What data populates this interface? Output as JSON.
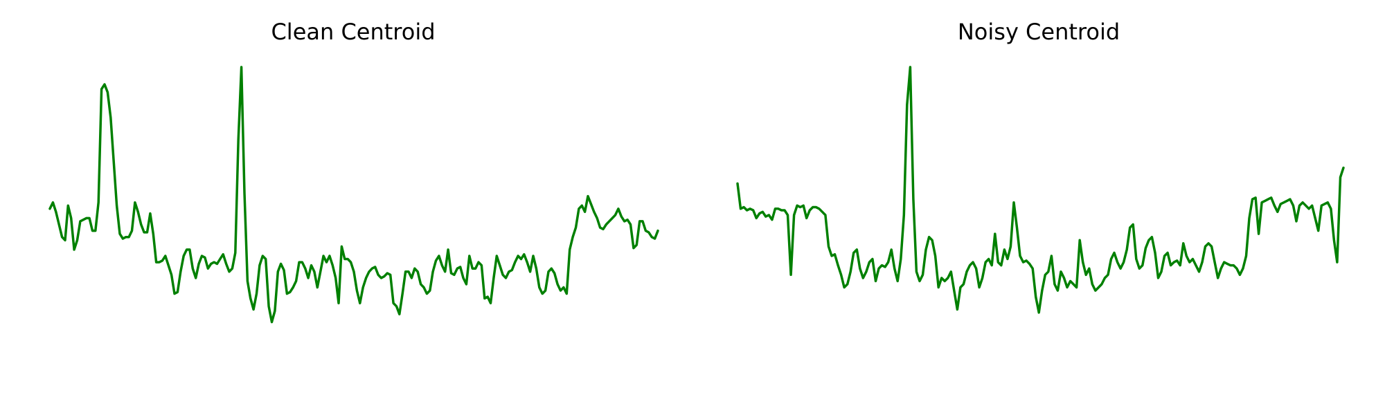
{
  "figure": {
    "colors": {
      "background": "#ffffff",
      "line": "#008000",
      "title": "#000000"
    }
  },
  "chart_data": [
    {
      "type": "line",
      "title": "Clean Centroid",
      "axes_visible": false,
      "grid": false,
      "ylim": [
        0,
        1
      ],
      "series": [
        {
          "color": "#008000",
          "values": [
            0.55,
            0.57,
            0.54,
            0.5,
            0.46,
            0.45,
            0.56,
            0.52,
            0.42,
            0.45,
            0.51,
            0.515,
            0.52,
            0.52,
            0.48,
            0.48,
            0.57,
            0.93,
            0.945,
            0.92,
            0.84,
            0.7,
            0.56,
            0.47,
            0.455,
            0.46,
            0.46,
            0.48,
            0.57,
            0.54,
            0.5,
            0.475,
            0.475,
            0.535,
            0.47,
            0.38,
            0.38,
            0.385,
            0.4,
            0.37,
            0.34,
            0.28,
            0.285,
            0.35,
            0.4,
            0.42,
            0.42,
            0.36,
            0.33,
            0.375,
            0.4,
            0.395,
            0.36,
            0.375,
            0.38,
            0.375,
            0.39,
            0.405,
            0.375,
            0.35,
            0.36,
            0.41,
            0.77,
            1.0,
            0.6,
            0.32,
            0.265,
            0.23,
            0.28,
            0.37,
            0.4,
            0.39,
            0.24,
            0.19,
            0.225,
            0.35,
            0.375,
            0.355,
            0.28,
            0.285,
            0.3,
            0.32,
            0.38,
            0.38,
            0.36,
            0.33,
            0.37,
            0.35,
            0.3,
            0.35,
            0.4,
            0.38,
            0.4,
            0.37,
            0.33,
            0.25,
            0.43,
            0.39,
            0.39,
            0.38,
            0.35,
            0.29,
            0.25,
            0.3,
            0.33,
            0.35,
            0.36,
            0.365,
            0.34,
            0.33,
            0.335,
            0.345,
            0.34,
            0.25,
            0.24,
            0.215,
            0.28,
            0.35,
            0.35,
            0.33,
            0.36,
            0.35,
            0.31,
            0.3,
            0.28,
            0.29,
            0.35,
            0.385,
            0.4,
            0.37,
            0.35,
            0.42,
            0.345,
            0.34,
            0.36,
            0.365,
            0.33,
            0.31,
            0.4,
            0.36,
            0.36,
            0.38,
            0.37,
            0.265,
            0.27,
            0.25,
            0.33,
            0.4,
            0.37,
            0.34,
            0.33,
            0.35,
            0.355,
            0.38,
            0.4,
            0.39,
            0.405,
            0.38,
            0.35,
            0.4,
            0.36,
            0.3,
            0.28,
            0.29,
            0.35,
            0.36,
            0.345,
            0.31,
            0.29,
            0.3,
            0.28,
            0.42,
            0.46,
            0.49,
            0.55,
            0.56,
            0.54,
            0.59,
            0.565,
            0.54,
            0.52,
            0.49,
            0.485,
            0.5,
            0.51,
            0.52,
            0.53,
            0.55,
            0.525,
            0.51,
            0.515,
            0.5,
            0.425,
            0.435,
            0.51,
            0.51,
            0.48,
            0.475,
            0.46,
            0.455,
            0.48
          ]
        }
      ]
    },
    {
      "type": "line",
      "title": "Noisy Centroid",
      "axes_visible": false,
      "grid": false,
      "ylim": [
        0,
        1
      ],
      "series": [
        {
          "color": "#008000",
          "values": [
            0.63,
            0.55,
            0.555,
            0.545,
            0.55,
            0.545,
            0.52,
            0.535,
            0.54,
            0.525,
            0.53,
            0.515,
            0.55,
            0.55,
            0.545,
            0.545,
            0.53,
            0.34,
            0.53,
            0.56,
            0.555,
            0.56,
            0.52,
            0.545,
            0.555,
            0.555,
            0.55,
            0.54,
            0.53,
            0.43,
            0.4,
            0.405,
            0.37,
            0.34,
            0.3,
            0.31,
            0.35,
            0.41,
            0.42,
            0.36,
            0.33,
            0.35,
            0.38,
            0.39,
            0.32,
            0.36,
            0.37,
            0.365,
            0.38,
            0.42,
            0.36,
            0.32,
            0.39,
            0.53,
            0.88,
            1.0,
            0.58,
            0.35,
            0.32,
            0.34,
            0.42,
            0.46,
            0.45,
            0.4,
            0.3,
            0.33,
            0.32,
            0.33,
            0.35,
            0.29,
            0.23,
            0.3,
            0.31,
            0.35,
            0.37,
            0.38,
            0.36,
            0.3,
            0.33,
            0.38,
            0.39,
            0.37,
            0.47,
            0.38,
            0.37,
            0.42,
            0.39,
            0.43,
            0.57,
            0.49,
            0.4,
            0.38,
            0.385,
            0.375,
            0.36,
            0.27,
            0.22,
            0.29,
            0.34,
            0.35,
            0.4,
            0.31,
            0.29,
            0.35,
            0.33,
            0.3,
            0.32,
            0.31,
            0.3,
            0.45,
            0.38,
            0.34,
            0.36,
            0.31,
            0.29,
            0.3,
            0.31,
            0.33,
            0.34,
            0.39,
            0.41,
            0.38,
            0.36,
            0.38,
            0.42,
            0.49,
            0.5,
            0.39,
            0.36,
            0.37,
            0.425,
            0.45,
            0.46,
            0.41,
            0.33,
            0.35,
            0.4,
            0.41,
            0.37,
            0.38,
            0.385,
            0.37,
            0.44,
            0.4,
            0.38,
            0.39,
            0.37,
            0.35,
            0.38,
            0.43,
            0.44,
            0.43,
            0.38,
            0.33,
            0.36,
            0.38,
            0.375,
            0.37,
            0.37,
            0.36,
            0.34,
            0.36,
            0.4,
            0.52,
            0.58,
            0.585,
            0.47,
            0.57,
            0.575,
            0.58,
            0.585,
            0.56,
            0.54,
            0.565,
            0.57,
            0.575,
            0.58,
            0.56,
            0.51,
            0.56,
            0.57,
            0.56,
            0.55,
            0.56,
            0.52,
            0.48,
            0.56,
            0.565,
            0.57,
            0.55,
            0.45,
            0.38,
            0.65,
            0.68
          ]
        }
      ]
    }
  ]
}
